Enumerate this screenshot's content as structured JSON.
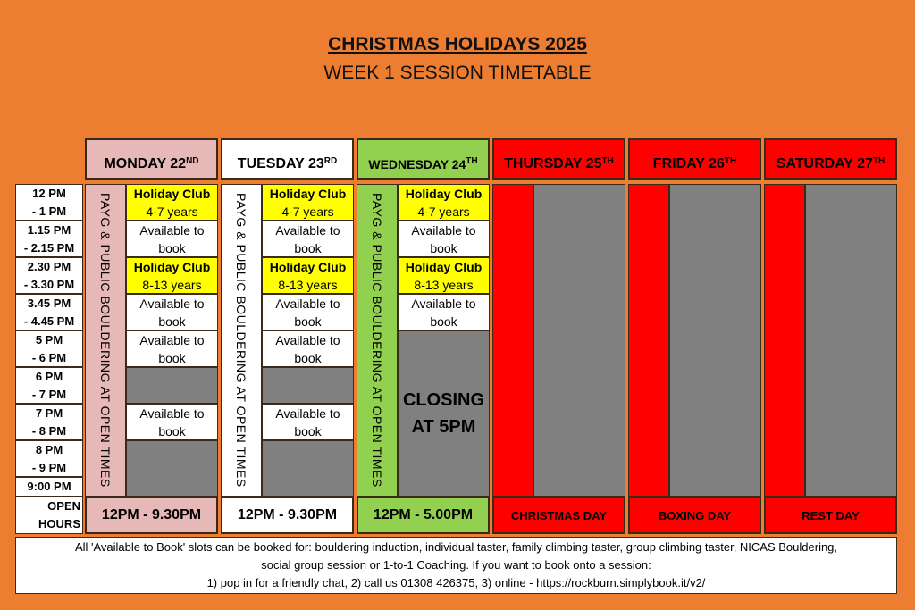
{
  "title": "CHRISTMAS HOLIDAYS 2025",
  "subtitle": "WEEK 1 SESSION TIMETABLE",
  "colors": {
    "background": "#ED7D31",
    "monday": "#E6B8B7",
    "tuesday": "#FFFFFF",
    "wednesday": "#92D050",
    "closed": "#FF0000",
    "unavailable": "#808080",
    "holiday_club": "#FFFF00"
  },
  "times": [
    {
      "a": "12 PM",
      "b": "- 1 PM"
    },
    {
      "a": "1.15 PM",
      "b": "- 2.15 PM"
    },
    {
      "a": "2.30 PM",
      "b": "- 3.30 PM"
    },
    {
      "a": "3.45 PM",
      "b": "- 4.45 PM"
    },
    {
      "a": "5 PM",
      "b": "- 6 PM"
    },
    {
      "a": "6 PM",
      "b": "- 7 PM"
    },
    {
      "a": "7 PM",
      "b": "- 8 PM"
    },
    {
      "a": "8 PM",
      "b": "- 9 PM"
    },
    {
      "a": "9:00 PM",
      "b": ""
    }
  ],
  "open_hours_label": {
    "a": "OPEN",
    "b": "HOURS"
  },
  "strip_text": "PAYG & PUBLIC BOULDERING AT OPEN TIMES",
  "days": [
    {
      "name": "MONDAY 22",
      "sup": "ND",
      "color": "#E6B8B7",
      "open": "12PM - 9.30PM",
      "slots": [
        {
          "type": "hc",
          "a": "Holiday Club",
          "b": "4-7 years"
        },
        {
          "type": "av",
          "a": "Available to",
          "b": "book"
        },
        {
          "type": "hc",
          "a": "Holiday Club",
          "b": "8-13 years"
        },
        {
          "type": "av",
          "a": "Available to",
          "b": "book"
        },
        {
          "type": "av",
          "a": "Available to",
          "b": "book"
        },
        {
          "type": "gr"
        },
        {
          "type": "av",
          "a": "Available to",
          "b": "book"
        },
        {
          "type": "gr",
          "span": 2
        }
      ]
    },
    {
      "name": "TUESDAY 23",
      "sup": "RD",
      "color": "#FFFFFF",
      "open": "12PM - 9.30PM",
      "slots": [
        {
          "type": "hc",
          "a": "Holiday Club",
          "b": "4-7 years"
        },
        {
          "type": "av",
          "a": "Available to",
          "b": "book"
        },
        {
          "type": "hc",
          "a": "Holiday Club",
          "b": "8-13 years"
        },
        {
          "type": "av",
          "a": "Available to",
          "b": "book"
        },
        {
          "type": "av",
          "a": "Available to",
          "b": "book"
        },
        {
          "type": "gr"
        },
        {
          "type": "av",
          "a": "Available to",
          "b": "book"
        },
        {
          "type": "gr",
          "span": 2
        }
      ]
    },
    {
      "name": "WEDNESDAY 24",
      "sup": "TH",
      "color": "#92D050",
      "open": "12PM - 5.00PM",
      "slots": [
        {
          "type": "hc",
          "a": "Holiday Club",
          "b": "4-7 years"
        },
        {
          "type": "av",
          "a": "Available to",
          "b": "book"
        },
        {
          "type": "hc",
          "a": "Holiday Club",
          "b": "8-13 years"
        },
        {
          "type": "av",
          "a": "Available to",
          "b": "book"
        },
        {
          "type": "cl",
          "a": "CLOSING",
          "b": "AT 5PM",
          "span": 5
        }
      ]
    },
    {
      "name": "THURSDAY 25",
      "sup": "TH",
      "color": "#FF0000",
      "open": "CHRISTMAS DAY",
      "slots": [
        {
          "type": "gr",
          "span": 9
        }
      ]
    },
    {
      "name": "FRIDAY 26",
      "sup": "TH",
      "color": "#FF0000",
      "open": "BOXING DAY",
      "slots": [
        {
          "type": "gr",
          "span": 9
        }
      ]
    },
    {
      "name": "SATURDAY 27",
      "sup": "TH",
      "color": "#FF0000",
      "open": "REST DAY",
      "slots": [
        {
          "type": "gr",
          "span": 9
        }
      ]
    }
  ],
  "footer": {
    "line1": "All 'Available to Book' slots can be booked for: bouldering induction, individual taster, family climbing taster, group climbing taster, NICAS Bouldering,",
    "line2": "social group session or 1-to-1 Coaching. If you want to book onto a session:",
    "line3": "1) pop in for a friendly chat, 2) call us 01308 426375, 3) online - https://rockburn.simplybook.it/v2/"
  }
}
